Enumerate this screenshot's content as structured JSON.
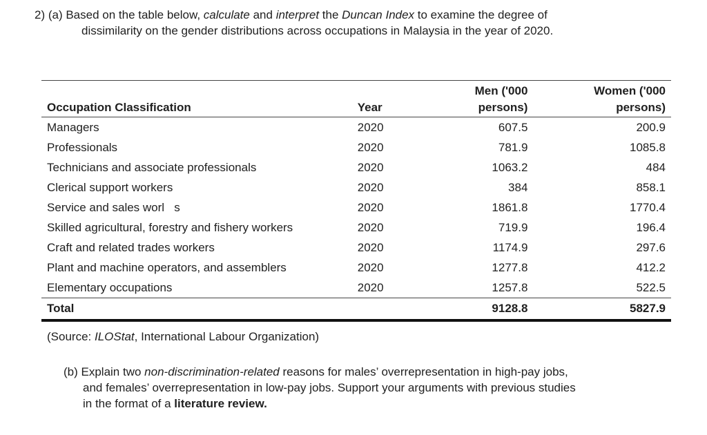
{
  "question_a": {
    "prefix": "2)  (a) Based on the table below, ",
    "em1": "calculate",
    "mid1": " and ",
    "em2": "interpret",
    "mid2": " the ",
    "em3": "Duncan Index",
    "rest1": " to examine the degree of",
    "line2": "dissimilarity on the gender distributions across occupations in Malaysia in the year of 2020."
  },
  "table": {
    "headers": {
      "occupation": "Occupation Classification",
      "year": "Year",
      "men_line1": "Men ('000",
      "men_line2": "persons)",
      "women_line1": "Women ('000",
      "women_line2": "persons)"
    },
    "rows": [
      {
        "occupation": "Managers",
        "year": "2020",
        "men": "607.5",
        "women": "200.9"
      },
      {
        "occupation": "Professionals",
        "year": "2020",
        "men": "781.9",
        "women": "1085.8"
      },
      {
        "occupation": "Technicians and associate professionals",
        "year": "2020",
        "men": "1063.2",
        "women": "484"
      },
      {
        "occupation": "Clerical support workers",
        "year": "2020",
        "men": "384",
        "women": "858.1"
      },
      {
        "occupation": "Service and sales worl   s",
        "year": "2020",
        "men": "1861.8",
        "women": "1770.4"
      },
      {
        "occupation": "Skilled agricultural, forestry and fishery workers",
        "year": "2020",
        "men": "719.9",
        "women": "196.4"
      },
      {
        "occupation": "Craft and related trades workers",
        "year": "2020",
        "men": "1174.9",
        "women": "297.6"
      },
      {
        "occupation": "Plant and machine operators, and assemblers",
        "year": "2020",
        "men": "1277.8",
        "women": "412.2"
      },
      {
        "occupation": "Elementary occupations",
        "year": "2020",
        "men": "1257.8",
        "women": "522.5"
      }
    ],
    "total": {
      "label": "Total",
      "men": "9128.8",
      "women": "5827.9"
    }
  },
  "source": {
    "prefix": "(Source: ",
    "em": "ILOStat",
    "rest": ", International Labour Organization)"
  },
  "question_b": {
    "prefix": "(b) Explain two ",
    "em": "non-discrimination-related",
    "rest1": " reasons for males’ overrepresentation in high-pay jobs,",
    "line2": "and females’ overrepresentation in low-pay jobs. Support your arguments with previous studies",
    "line3_prefix": "in the format of a ",
    "line3_bold": "literature review."
  }
}
